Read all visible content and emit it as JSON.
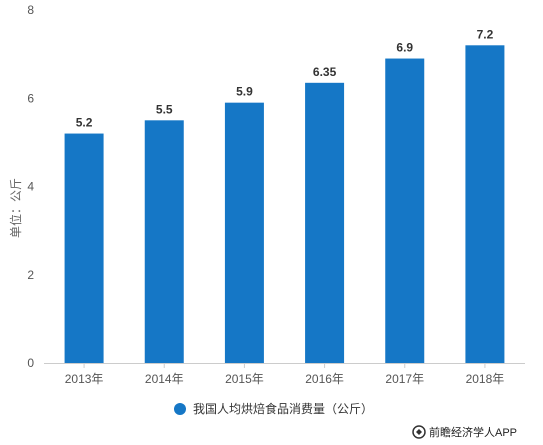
{
  "chart_data": {
    "type": "bar",
    "categories": [
      "2013年",
      "2014年",
      "2015年",
      "2016年",
      "2017年",
      "2018年"
    ],
    "values": [
      5.2,
      5.5,
      5.9,
      6.35,
      6.9,
      7.2
    ],
    "value_labels": [
      "5.2",
      "5.5",
      "5.9",
      "6.35",
      "6.9",
      "7.2"
    ],
    "ylabel": "单位：公斤",
    "ylim": [
      0,
      8
    ],
    "yticks": [
      0,
      2,
      4,
      6,
      8
    ],
    "grid": false,
    "legend": {
      "position": "bottom",
      "entries": [
        "我国人均烘焙食品消费量（公斤）"
      ]
    },
    "colors": {
      "bar": "#1577c6",
      "axis": "#cccccc"
    }
  },
  "watermark": {
    "text": "前瞻经济学人APP",
    "icon": "app-logo-icon"
  }
}
